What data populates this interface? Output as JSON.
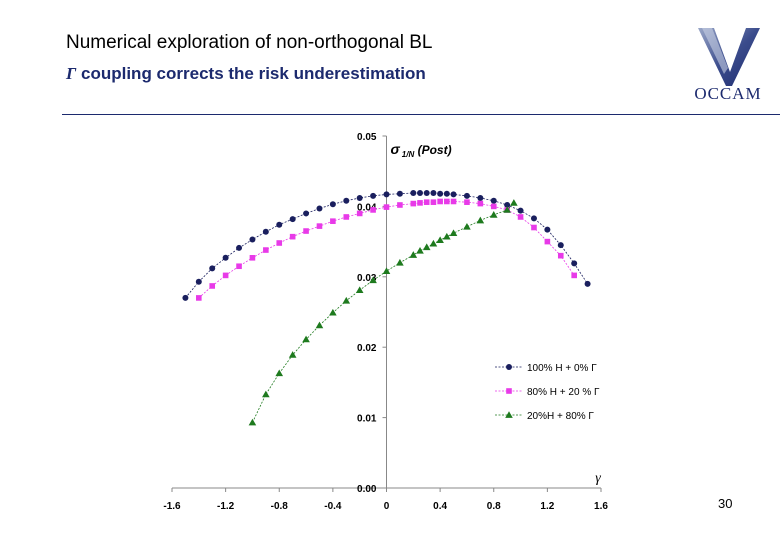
{
  "slide": {
    "title": "Numerical exploration of non-orthogonal BL",
    "subtitle_symbol": "Γ",
    "subtitle_text": " coupling corrects the risk underestimation",
    "logo_text": "OCCAM",
    "page_number": "30"
  },
  "colors": {
    "title": "#000000",
    "subtitle": "#1c2a6e",
    "rule": "#1c2a6e",
    "logo": "#1c2a6e",
    "series_navy": "#1a1f5e",
    "series_magenta": "#e83ae8",
    "series_green": "#1e7a1e"
  },
  "chart_data": {
    "type": "scatter",
    "title": "",
    "ylabel_symbol": "σ",
    "ylabel_sub": "1/N",
    "ylabel_rest": " (Post)",
    "xlabel": "γ",
    "xlim": [
      -1.6,
      1.6
    ],
    "ylim": [
      0.0,
      0.05
    ],
    "x_ticks": [
      "-1.6",
      "-1.2",
      "-0.8",
      "-0.4",
      "0",
      "0.4",
      "0.8",
      "1.2",
      "1.6"
    ],
    "y_ticks": [
      "0.00",
      "0.01",
      "0.02",
      "0.03",
      "0.04",
      "0.05"
    ],
    "legend_position": "lower-right",
    "series": [
      {
        "name": "100% H +   0% Γ",
        "marker": "circle",
        "color": "#1a1f5e",
        "x": [
          -1.5,
          -1.4,
          -1.3,
          -1.2,
          -1.1,
          -1.0,
          -0.9,
          -0.8,
          -0.7,
          -0.6,
          -0.5,
          -0.4,
          -0.3,
          -0.2,
          -0.1,
          0.0,
          0.1,
          0.2,
          0.25,
          0.3,
          0.35,
          0.4,
          0.45,
          0.5,
          0.6,
          0.7,
          0.8,
          0.9,
          1.0,
          1.1,
          1.2,
          1.3,
          1.4,
          1.5
        ],
        "y": [
          0.027,
          0.0293,
          0.0312,
          0.0327,
          0.0341,
          0.0353,
          0.0364,
          0.0374,
          0.0382,
          0.039,
          0.0397,
          0.0403,
          0.0408,
          0.0412,
          0.0415,
          0.0417,
          0.0418,
          0.0419,
          0.0419,
          0.0419,
          0.0419,
          0.0418,
          0.0418,
          0.0417,
          0.0415,
          0.0412,
          0.0408,
          0.0402,
          0.0394,
          0.0383,
          0.0367,
          0.0345,
          0.0319,
          0.029
        ]
      },
      {
        "name": "80% H + 20 % Γ",
        "marker": "square",
        "color": "#e83ae8",
        "x": [
          -1.4,
          -1.3,
          -1.2,
          -1.1,
          -1.0,
          -0.9,
          -0.8,
          -0.7,
          -0.6,
          -0.5,
          -0.4,
          -0.3,
          -0.2,
          -0.1,
          0.0,
          0.1,
          0.2,
          0.25,
          0.3,
          0.35,
          0.4,
          0.45,
          0.5,
          0.6,
          0.7,
          0.8,
          0.9,
          1.0,
          1.1,
          1.2,
          1.3,
          1.4
        ],
        "y": [
          0.027,
          0.0287,
          0.0302,
          0.0315,
          0.0327,
          0.0338,
          0.0348,
          0.0357,
          0.0365,
          0.0372,
          0.0379,
          0.0385,
          0.039,
          0.0395,
          0.0399,
          0.0402,
          0.0404,
          0.0405,
          0.0406,
          0.0406,
          0.0407,
          0.0407,
          0.0407,
          0.0406,
          0.0404,
          0.04,
          0.0395,
          0.0385,
          0.037,
          0.035,
          0.033,
          0.0302
        ]
      },
      {
        "name": "20%H +  80% Γ",
        "marker": "triangle",
        "color": "#1e7a1e",
        "x": [
          -1.0,
          -0.9,
          -0.8,
          -0.7,
          -0.6,
          -0.5,
          -0.4,
          -0.3,
          -0.2,
          -0.1,
          0.0,
          0.1,
          0.2,
          0.25,
          0.3,
          0.35,
          0.4,
          0.45,
          0.5,
          0.6,
          0.7,
          0.8,
          0.9,
          0.95
        ],
        "y": [
          0.0093,
          0.0133,
          0.0163,
          0.0189,
          0.0211,
          0.0231,
          0.0249,
          0.0266,
          0.0281,
          0.0295,
          0.0308,
          0.032,
          0.0331,
          0.0337,
          0.0342,
          0.0347,
          0.0352,
          0.0357,
          0.0362,
          0.0371,
          0.038,
          0.0388,
          0.0395,
          0.0405
        ]
      }
    ]
  }
}
